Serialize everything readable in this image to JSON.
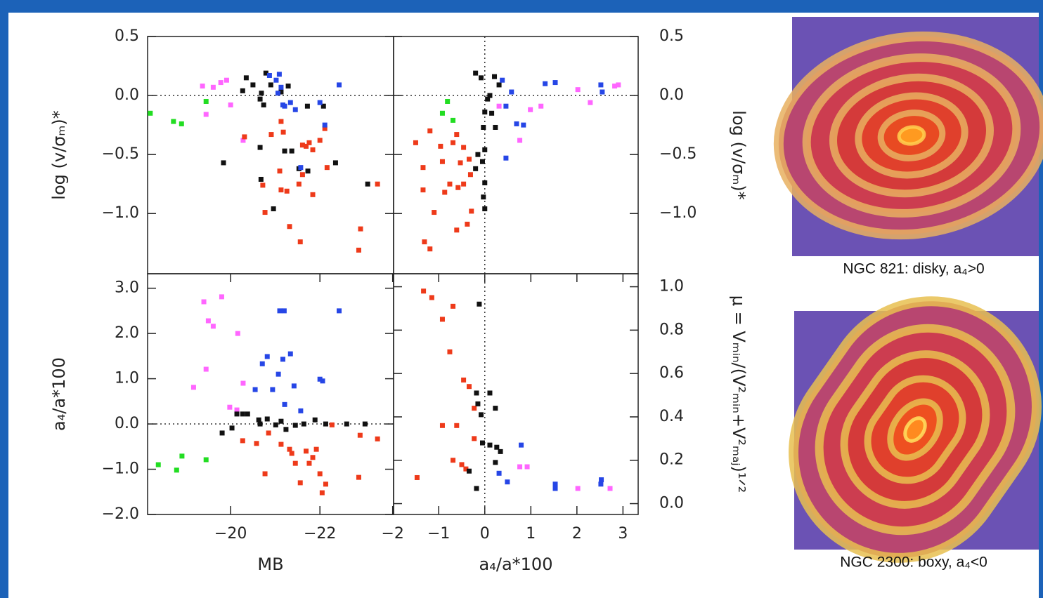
{
  "chart_data": [
    {
      "type": "scatter",
      "ylabel": "log (v/σₘ)*",
      "xlim": [
        -18.14,
        -23.65
      ],
      "ylim": [
        -1.51,
        0.5
      ],
      "yticks": [
        0.5,
        {
          "value": 0,
          "label": "0.0"
        },
        {
          "value": -0.5,
          "label": "−0.5"
        },
        {
          "value": -1,
          "label": "−1.0"
        }
      ],
      "hline": 0,
      "series": [
        {
          "color": "#22dd22",
          "x": [
            -18.2,
            -18.72,
            -18.9,
            -19.45
          ],
          "values": [
            -0.15,
            -0.22,
            -0.24,
            -0.05
          ]
        },
        {
          "color": "#ff66ff",
          "x": [
            -19.37,
            -19.61,
            -19.78,
            -19.91,
            -20.0,
            -20.28,
            -19.45
          ],
          "values": [
            0.08,
            0.07,
            0.11,
            0.13,
            -0.08,
            -0.38,
            -0.16
          ]
        },
        {
          "color": "#111111",
          "x": [
            -20.35,
            -20.27,
            -20.5,
            -20.69,
            -20.79,
            -20.66,
            -20.74,
            -19.84,
            -20.66,
            -20.68,
            -20.96,
            -21.21,
            -21.37,
            -21.53,
            -21.73,
            -22.35,
            -22.08,
            -21.72,
            -21.29,
            -23.07,
            -21.13,
            -20.9
          ],
          "values": [
            0.15,
            0.04,
            0.09,
            0.02,
            0.19,
            -0.03,
            -0.08,
            -0.57,
            -0.44,
            -0.71,
            -0.96,
            -0.47,
            -0.47,
            -0.62,
            -0.64,
            -0.57,
            -0.09,
            -0.09,
            0.08,
            -0.75,
            0.03,
            0.09
          ]
        },
        {
          "color": "#ee3a1a",
          "x": [
            -20.31,
            -20.91,
            -21.18,
            -20.72,
            -21.1,
            -21.13,
            -21.26,
            -21.53,
            -21.61,
            -21.84,
            -21.69,
            -21.61,
            -21.76,
            -22.0,
            -22.16,
            -20.77,
            -21.32,
            -21.56,
            -21.84,
            -22.87,
            -22.91,
            -23.29,
            -21.13,
            -22.11
          ],
          "values": [
            -0.35,
            -0.33,
            -0.31,
            -0.76,
            -0.64,
            -0.8,
            -0.81,
            -0.75,
            -0.67,
            -0.46,
            -0.43,
            -0.42,
            -0.4,
            -0.38,
            -0.61,
            -0.99,
            -1.11,
            -1.24,
            -0.84,
            -1.31,
            -1.13,
            -0.75,
            -0.22,
            -0.28
          ]
        },
        {
          "color": "#2646e6",
          "x": [
            -20.87,
            -21.09,
            -21.13,
            -21.06,
            -21.17,
            -21.21,
            -21.34,
            -21.45,
            -22.0,
            -22.11,
            -22.43,
            -21.57,
            -21.02
          ],
          "values": [
            0.17,
            0.18,
            0.07,
            0.02,
            -0.08,
            -0.09,
            -0.06,
            -0.12,
            -0.06,
            -0.25,
            0.09,
            -0.61,
            0.13
          ]
        }
      ]
    },
    {
      "type": "scatter",
      "ylabel": "log (v/σₘ)*",
      "xlim": [
        -1.98,
        3.33
      ],
      "ylim": [
        -1.51,
        0.5
      ],
      "yticks": [
        0.5,
        {
          "value": 0,
          "label": "0.0"
        },
        {
          "value": -0.5,
          "label": "−0.5"
        },
        {
          "value": -1,
          "label": "−1.0"
        }
      ],
      "hline": 0,
      "vline": 0,
      "series": [
        {
          "color": "#111111",
          "x": [
            -0.2,
            -0.08,
            0.11,
            0.06,
            0.0,
            -0.03,
            0.0,
            -0.15,
            -0.05,
            -0.2,
            0.0,
            -0.03,
            0.0,
            0.23,
            0.15,
            0.31,
            0.21
          ],
          "values": [
            0.19,
            0.15,
            0.0,
            -0.03,
            -0.14,
            -0.27,
            -0.46,
            -0.5,
            -0.56,
            -0.62,
            -0.74,
            -0.86,
            -0.96,
            -0.27,
            -0.15,
            0.09,
            0.16
          ]
        },
        {
          "color": "#ee3a1a",
          "x": [
            -1.5,
            -1.19,
            -0.96,
            -0.69,
            -0.46,
            -0.61,
            -0.53,
            -0.34,
            -0.92,
            -1.34,
            -1.34,
            -1.1,
            -1.31,
            -1.19,
            -0.61,
            -0.38,
            -0.76,
            -0.58,
            -0.46,
            -0.31,
            -0.87,
            -0.29
          ],
          "values": [
            -0.4,
            -0.3,
            -0.43,
            -0.4,
            -0.44,
            -0.33,
            -0.57,
            -0.54,
            -0.56,
            -0.61,
            -0.8,
            -0.99,
            -1.24,
            -1.3,
            -1.14,
            -1.09,
            -0.75,
            -0.78,
            -0.75,
            -0.67,
            -0.82,
            -0.98
          ]
        },
        {
          "color": "#2646e6",
          "x": [
            0.38,
            0.58,
            0.46,
            0.69,
            0.84,
            1.31,
            1.53,
            0.46,
            2.52,
            2.55
          ],
          "values": [
            0.13,
            0.03,
            -0.09,
            -0.24,
            -0.25,
            0.1,
            0.11,
            -0.53,
            0.09,
            0.03
          ]
        },
        {
          "color": "#ff66ff",
          "x": [
            0.31,
            0.99,
            1.22,
            0.76,
            2.02,
            2.29,
            2.82,
            2.9
          ],
          "values": [
            -0.09,
            -0.12,
            -0.09,
            -0.38,
            0.05,
            -0.06,
            0.08,
            0.09
          ]
        },
        {
          "color": "#22dd22",
          "x": [
            -0.92,
            -0.81,
            -0.69
          ],
          "values": [
            -0.15,
            -0.05,
            -0.21
          ]
        }
      ]
    },
    {
      "type": "scatter",
      "ylabel": "a₄/a*100",
      "xlabel": "MB",
      "xlim": [
        -18.14,
        -23.65
      ],
      "ylim": [
        -2.0,
        3.32
      ],
      "xticks": [
        {
          "value": -20,
          "label": "−20"
        },
        {
          "value": -22,
          "label": "−22"
        }
      ],
      "yticks": [
        {
          "value": 3,
          "label": "3.0"
        },
        {
          "value": 2,
          "label": "2.0"
        },
        {
          "value": 1,
          "label": "1.0"
        },
        {
          "value": 0,
          "label": "0.0"
        },
        {
          "value": -1,
          "label": "−1.0"
        },
        {
          "value": -2,
          "label": "−2.0"
        }
      ],
      "hline": 0,
      "series": [
        {
          "color": "#ff66ff",
          "x": [
            -19.4,
            -19.5,
            -19.61,
            -19.8,
            -20.16,
            -19.45,
            -19.17,
            -20.28,
            -19.98,
            -20.14
          ],
          "values": [
            2.7,
            2.28,
            2.16,
            2.81,
            2.0,
            1.21,
            0.81,
            0.9,
            0.37,
            0.31
          ]
        },
        {
          "color": "#22dd22",
          "x": [
            -18.38,
            -18.79,
            -18.91,
            -19.45
          ],
          "values": [
            -0.9,
            -1.02,
            -0.71,
            -0.79
          ]
        },
        {
          "color": "#2646e6",
          "x": [
            -21.1,
            -21.2,
            -20.82,
            -20.71,
            -21.17,
            -21.34,
            -21.07,
            -21.42,
            -20.94,
            -20.55,
            -21.21,
            -21.57,
            -22.0,
            -22.06,
            -22.43
          ],
          "values": [
            2.5,
            2.5,
            1.49,
            1.33,
            1.43,
            1.55,
            1.1,
            0.84,
            0.76,
            0.76,
            0.43,
            0.29,
            0.99,
            0.95,
            2.5
          ]
        },
        {
          "color": "#111111",
          "x": [
            -20.14,
            -20.27,
            -20.38,
            -19.81,
            -20.63,
            -20.66,
            -20.82,
            -21.01,
            -21.13,
            -21.24,
            -21.45,
            -21.64,
            -21.89,
            -22.13,
            -22.6,
            -23.01,
            -20.03
          ],
          "values": [
            0.22,
            0.22,
            0.22,
            -0.2,
            0.09,
            0.0,
            0.11,
            -0.02,
            0.06,
            -0.12,
            -0.03,
            0.0,
            0.09,
            0.0,
            0.0,
            0.0,
            -0.09
          ]
        },
        {
          "color": "#ee3a1a",
          "x": [
            -20.27,
            -20.58,
            -20.77,
            -20.85,
            -21.13,
            -21.32,
            -21.45,
            -21.37,
            -21.56,
            -21.69,
            -21.76,
            -21.84,
            -21.92,
            -22.0,
            -22.13,
            -22.05,
            -22.27,
            -22.9,
            -23.29,
            -22.87
          ],
          "values": [
            -0.37,
            -0.43,
            -1.1,
            -0.2,
            -0.45,
            -0.56,
            -0.87,
            -0.65,
            -1.3,
            -0.6,
            -0.87,
            -0.74,
            -0.56,
            -1.1,
            -1.33,
            -1.52,
            -0.02,
            -0.25,
            -0.33,
            -1.18
          ]
        }
      ]
    },
    {
      "type": "scatter",
      "ylabel": "μ = Vₘᵢₙ/(V²ₘᵢₙ+V²ₘₐⱼ)¹ᐟ²",
      "xlabel": "a₄/a*100",
      "xlim": [
        -1.98,
        3.33
      ],
      "ylim": [
        -0.05,
        1.06
      ],
      "xticks": [
        {
          "value": -2,
          "label": "−2"
        },
        {
          "value": -1,
          "label": "−1"
        },
        0,
        1,
        2,
        3
      ],
      "yticks": [
        {
          "value": 1,
          "label": "1.0"
        },
        0.8,
        0.6,
        0.4,
        0.2,
        {
          "value": 0,
          "label": "0.0"
        }
      ],
      "vline": 0,
      "series": [
        {
          "color": "#ee3a1a",
          "x": [
            -1.33,
            -1.15,
            -0.92,
            -0.69,
            -0.76,
            -0.46,
            -0.34,
            -0.23,
            -0.92,
            -0.61,
            -0.69,
            -0.5,
            -0.41,
            -1.47,
            -0.23
          ],
          "values": [
            0.98,
            0.95,
            0.85,
            0.91,
            0.7,
            0.57,
            0.54,
            0.44,
            0.36,
            0.36,
            0.2,
            0.18,
            0.16,
            0.12,
            0.3
          ]
        },
        {
          "color": "#111111",
          "x": [
            -0.12,
            -0.18,
            -0.15,
            -0.08,
            0.11,
            0.23,
            -0.05,
            0.11,
            0.26,
            0.34,
            0.23,
            -0.18,
            -0.34
          ],
          "values": [
            0.92,
            0.51,
            0.46,
            0.41,
            0.51,
            0.44,
            0.28,
            0.27,
            0.26,
            0.24,
            0.19,
            0.07,
            0.15
          ]
        },
        {
          "color": "#2646e6",
          "x": [
            0.31,
            0.49,
            0.79,
            1.53,
            1.53,
            2.53,
            2.52
          ],
          "values": [
            0.14,
            0.1,
            0.27,
            0.09,
            0.07,
            0.11,
            0.09
          ]
        },
        {
          "color": "#ff66ff",
          "x": [
            0.76,
            0.92,
            2.02,
            2.72
          ],
          "values": [
            0.17,
            0.17,
            0.07,
            0.07
          ]
        }
      ]
    }
  ],
  "images": [
    {
      "caption": "NGC 821: disky, a₄>0"
    },
    {
      "caption": "NGC 2300: boxy, a₄<0"
    }
  ]
}
